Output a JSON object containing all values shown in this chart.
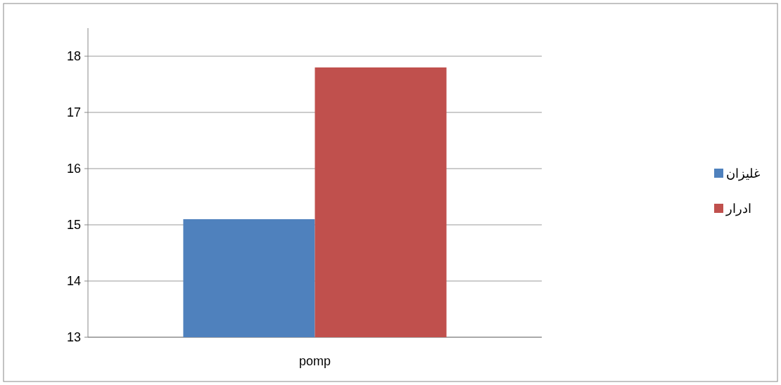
{
  "chart_data": {
    "type": "bar",
    "categories": [
      "pomp"
    ],
    "series": [
      {
        "name": "غلیزان",
        "color": "#4f81bd",
        "values": [
          15.1
        ]
      },
      {
        "name": "ادرار",
        "color": "#c0504d",
        "values": [
          17.8
        ]
      }
    ],
    "ylim": [
      13,
      18.5
    ],
    "yticks": [
      13,
      14,
      15,
      16,
      17,
      18
    ],
    "grid": "y",
    "legend": "right"
  }
}
